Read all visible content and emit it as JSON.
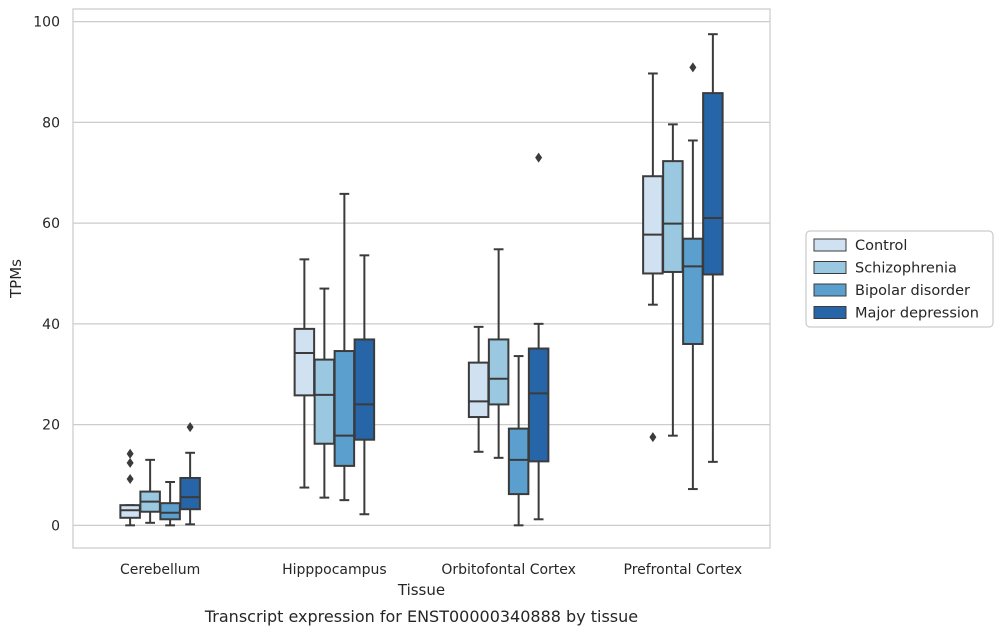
{
  "chart_data": {
    "type": "box",
    "title": "",
    "caption": "Transcript expression for ENST00000340888 by tissue",
    "xlabel": "Tissue",
    "ylabel": "TPMs",
    "ylim": [
      -4.5,
      102.5
    ],
    "yticks": [
      0,
      20,
      40,
      60,
      80,
      100
    ],
    "grid": "horizontal",
    "legend_position": "right",
    "categories": [
      "Cerebellum",
      "Hipppocampus",
      "Orbitofontal Cortex",
      "Prefrontal Cortex"
    ],
    "series": [
      {
        "name": "Control",
        "color": "#d0e1f2",
        "boxes": [
          {
            "whisker_low": 0,
            "q1": 1.5,
            "median": 3.0,
            "q3": 4.0,
            "whisker_high": 4.0,
            "outliers": [
              9.2,
              12.4,
              14.2
            ]
          },
          {
            "whisker_low": 7.5,
            "q1": 25.8,
            "median": 34.2,
            "q3": 39.0,
            "whisker_high": 52.8,
            "outliers": []
          },
          {
            "whisker_low": 14.6,
            "q1": 21.5,
            "median": 24.6,
            "q3": 32.3,
            "whisker_high": 39.4,
            "outliers": []
          },
          {
            "whisker_low": 43.8,
            "q1": 50.0,
            "median": 57.7,
            "q3": 69.3,
            "whisker_high": 89.7,
            "outliers": [
              17.5
            ]
          }
        ]
      },
      {
        "name": "Schizophrenia",
        "color": "#9ac8e0",
        "boxes": [
          {
            "whisker_low": 0.5,
            "q1": 2.7,
            "median": 4.7,
            "q3": 6.7,
            "whisker_high": 13.0,
            "outliers": []
          },
          {
            "whisker_low": 5.5,
            "q1": 16.2,
            "median": 25.9,
            "q3": 32.9,
            "whisker_high": 47.0,
            "outliers": []
          },
          {
            "whisker_low": 13.4,
            "q1": 24.0,
            "median": 29.1,
            "q3": 36.9,
            "whisker_high": 54.8,
            "outliers": []
          },
          {
            "whisker_low": 17.8,
            "q1": 50.3,
            "median": 59.9,
            "q3": 72.3,
            "whisker_high": 79.6,
            "outliers": []
          }
        ]
      },
      {
        "name": "Bipolar disorder",
        "color": "#5a9fcd",
        "boxes": [
          {
            "whisker_low": 0,
            "q1": 1.2,
            "median": 2.5,
            "q3": 4.4,
            "whisker_high": 8.6,
            "outliers": []
          },
          {
            "whisker_low": 5.0,
            "q1": 11.8,
            "median": 17.8,
            "q3": 34.6,
            "whisker_high": 65.8,
            "outliers": []
          },
          {
            "whisker_low": 0,
            "q1": 6.2,
            "median": 13.0,
            "q3": 19.2,
            "whisker_high": 33.6,
            "outliers": []
          },
          {
            "whisker_low": 7.2,
            "q1": 36.0,
            "median": 51.4,
            "q3": 56.9,
            "whisker_high": 76.4,
            "outliers": [
              90.9
            ]
          }
        ]
      },
      {
        "name": "Major depression",
        "color": "#2565a8",
        "boxes": [
          {
            "whisker_low": 0.2,
            "q1": 3.2,
            "median": 5.6,
            "q3": 9.4,
            "whisker_high": 14.4,
            "outliers": [
              19.5
            ]
          },
          {
            "whisker_low": 2.2,
            "q1": 17.0,
            "median": 24.0,
            "q3": 36.9,
            "whisker_high": 53.6,
            "outliers": []
          },
          {
            "whisker_low": 1.2,
            "q1": 12.7,
            "median": 26.2,
            "q3": 35.1,
            "whisker_high": 40.0,
            "outliers": [
              73.0
            ]
          },
          {
            "whisker_low": 12.6,
            "q1": 49.8,
            "median": 61.0,
            "q3": 85.8,
            "whisker_high": 97.5,
            "outliers": []
          }
        ]
      }
    ]
  }
}
